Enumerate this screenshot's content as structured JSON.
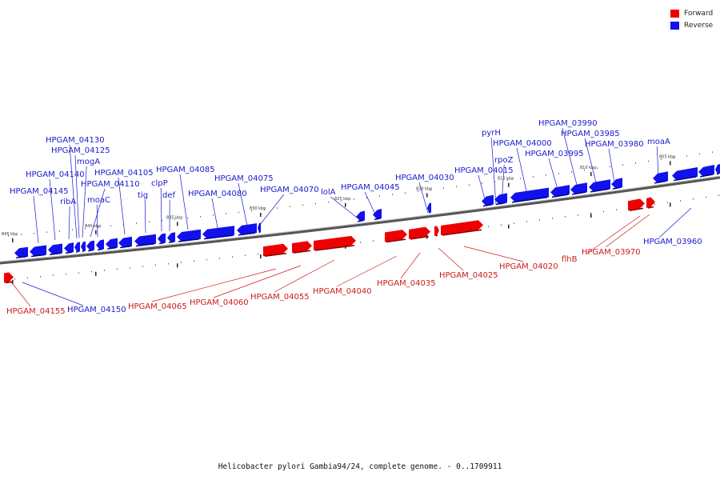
{
  "legend": [
    {
      "label": "Forward",
      "color": "#ee0000"
    },
    {
      "label": "Reverse",
      "color": "#1111ee"
    }
  ],
  "footer": "Helicobacter pylori Gambia94/24, complete genome. - 0..1709911",
  "kbp_labels": [
    "845 kbp",
    "840 kbp",
    "835 kbp",
    "830 kbp",
    "825 kbp",
    "820 kbp",
    "815 kbp",
    "810 kbp",
    "805 kbp"
  ],
  "reverse_genes": [
    "HPGAM_04145",
    "HPGAM_04140",
    "ribA",
    "HPGAM_04130",
    "HPGAM_04125",
    "mogA",
    "HPGAM_04110",
    "moaC",
    "HPGAM_04105",
    "tig",
    "clpP",
    "def",
    "HPGAM_04085",
    "HPGAM_04080",
    "HPGAM_04075",
    "HPGAM_04070",
    "lolA",
    "HPGAM_04045",
    "HPGAM_04030",
    "HPGAM_04015",
    "pyrH",
    "rpoZ",
    "HPGAM_04000",
    "HPGAM_03995",
    "HPGAM_03990",
    "HPGAM_03985",
    "HPGAM_03980",
    "moaA",
    "HPGAM_03960",
    "HPGAM_04150"
  ],
  "forward_genes": [
    "HPGAM_04155",
    "HPGAM_04065",
    "HPGAM_04060",
    "HPGAM_04055",
    "HPGAM_04040",
    "HPGAM_04035",
    "HPGAM_04025",
    "HPGAM_04020",
    "flhB",
    "HPGAM_03970"
  ]
}
